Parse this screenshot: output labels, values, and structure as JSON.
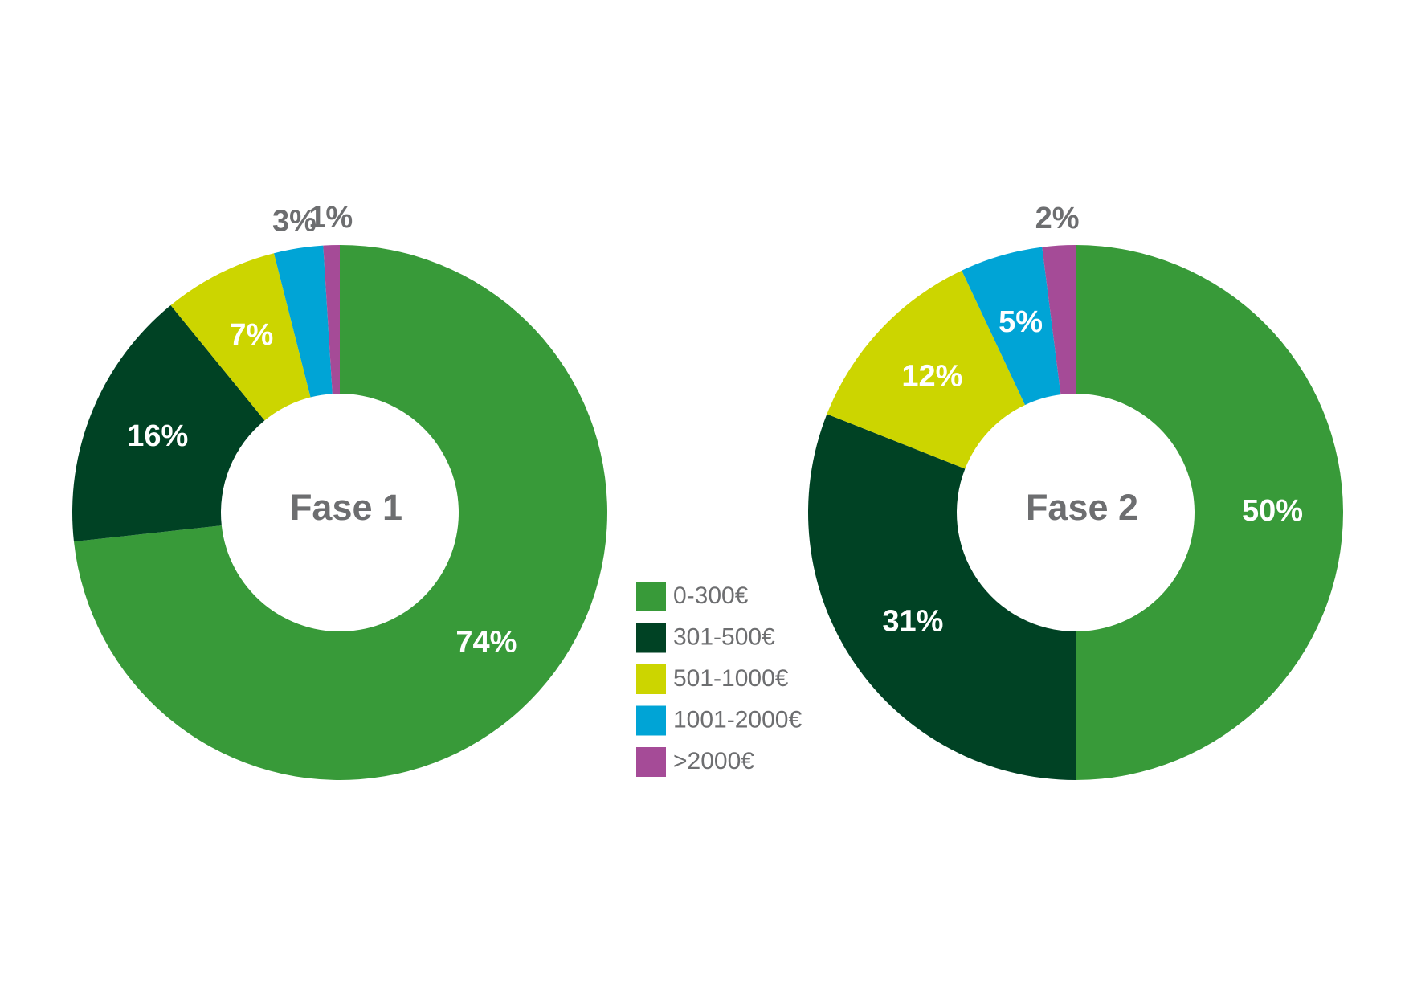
{
  "chart_data": [
    {
      "type": "donut",
      "title": "Fase 1",
      "categories": [
        "0-300€",
        "301-500€",
        "501-1000€",
        "1001-2000€",
        ">2000€"
      ],
      "values": [
        74,
        16,
        7,
        3,
        1
      ],
      "value_labels": [
        "74%",
        "16%",
        "7%",
        "3%",
        "1%"
      ],
      "colors": [
        "#389a39",
        "#004224",
        "#ccd500",
        "#00a4d6",
        "#a54b97"
      ]
    },
    {
      "type": "donut",
      "title": "Fase 2",
      "categories": [
        "0-300€",
        "301-500€",
        "501-1000€",
        "1001-2000€",
        ">2000€"
      ],
      "values": [
        50,
        31,
        12,
        5,
        2
      ],
      "value_labels": [
        "50%",
        "31%",
        "12%",
        "5%",
        "2%"
      ],
      "colors": [
        "#389a39",
        "#004224",
        "#ccd500",
        "#00a4d6",
        "#a54b97"
      ]
    }
  ]
}
